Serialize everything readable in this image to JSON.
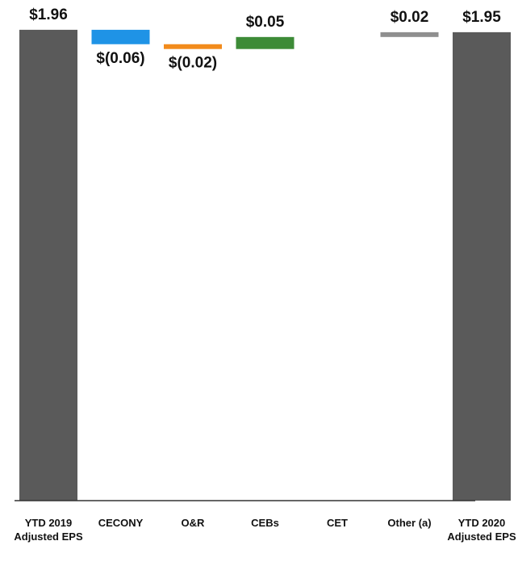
{
  "chart_data": {
    "type": "waterfall",
    "categories": [
      "YTD 2019 Adjusted EPS",
      "CECONY",
      "O&R",
      "CEBs",
      "CET",
      "Other (a)",
      "YTD 2020 Adjusted EPS"
    ],
    "values": [
      1.96,
      -0.06,
      -0.02,
      0.05,
      0,
      0.02,
      1.95
    ],
    "value_labels": [
      "$1.96",
      "$(0.06)",
      "$(0.02)",
      "$0.05",
      null,
      "$0.02",
      "$1.95"
    ],
    "is_total": [
      true,
      false,
      false,
      false,
      false,
      false,
      true
    ],
    "colors": [
      "#5a5a5a",
      "#1f93e6",
      "#f28b1c",
      "#3d8b37",
      "#7f7f7f",
      "#8f8f8f",
      "#5a5a5a"
    ],
    "ylim": [
      0,
      2
    ]
  }
}
